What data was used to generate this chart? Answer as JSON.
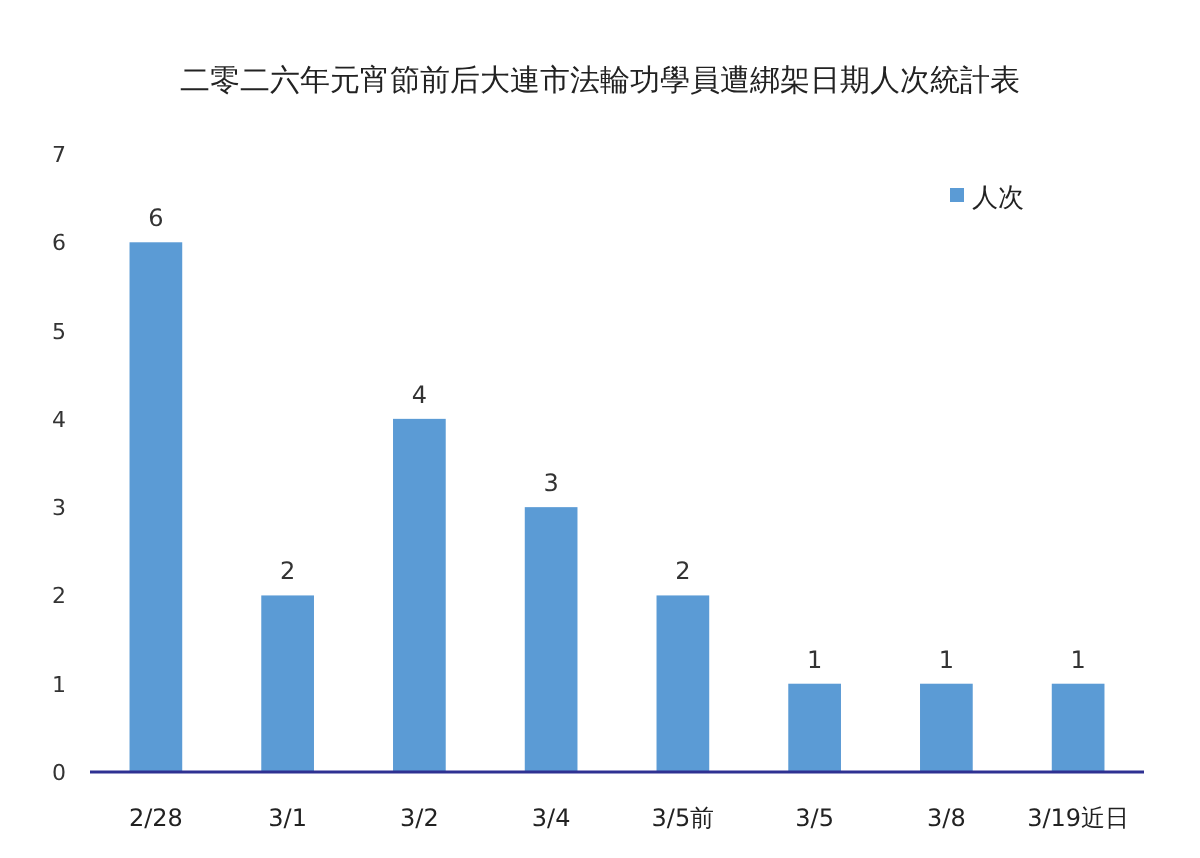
{
  "chart_data": {
    "type": "bar",
    "title": "二零二六年元宵節前后大連市法輪功學員遭綁架日期人次統計表",
    "categories": [
      "2/28",
      "3/1",
      "3/2",
      "3/4",
      "3/5前",
      "3/5",
      "3/8",
      "3/19近日"
    ],
    "series": [
      {
        "name": "人次",
        "color": "#5b9bd5",
        "values": [
          6,
          2,
          4,
          3,
          2,
          1,
          1,
          1
        ]
      }
    ],
    "ylim": [
      0,
      7
    ],
    "yticks": [
      0,
      1,
      2,
      3,
      4,
      5,
      6,
      7
    ],
    "grid": false,
    "legend": "top right",
    "data_labels": true
  }
}
